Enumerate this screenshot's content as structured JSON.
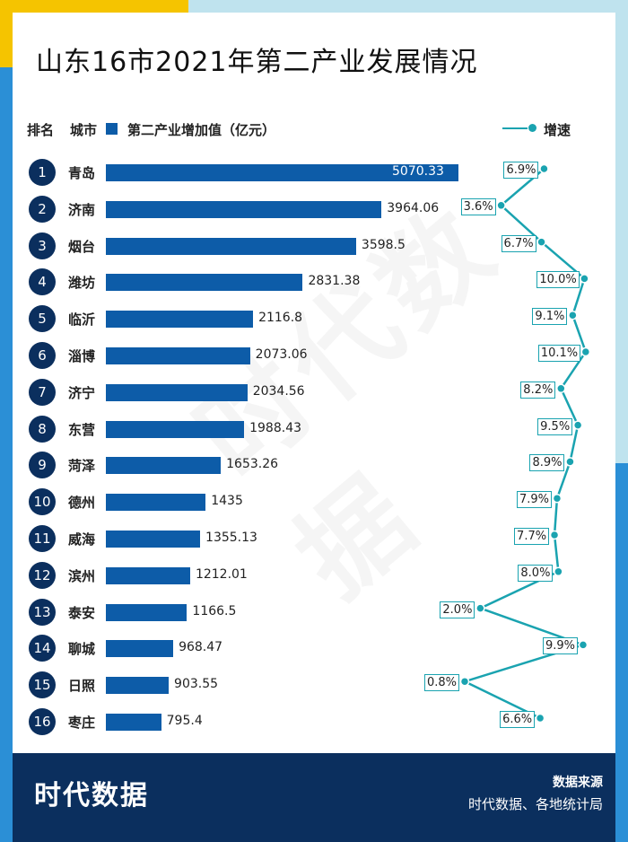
{
  "title": "山东16市2021年第二产业发展情况",
  "headers": {
    "rank": "排名",
    "city": "城市",
    "value": "第二产业增加值（亿元）",
    "growth": "增速"
  },
  "colors": {
    "bar": "#0d5ca8",
    "line": "#1aa3b0",
    "badge": "#0b2f5e"
  },
  "chart_data": {
    "type": "bar",
    "title": "山东16市2021年第二产业发展情况",
    "categories": [
      "青岛",
      "济南",
      "烟台",
      "潍坊",
      "临沂",
      "淄博",
      "济宁",
      "东营",
      "菏泽",
      "德州",
      "威海",
      "滨州",
      "泰安",
      "聊城",
      "日照",
      "枣庄"
    ],
    "ranks": [
      "1",
      "2",
      "3",
      "4",
      "5",
      "6",
      "7",
      "8",
      "9",
      "10",
      "11",
      "12",
      "13",
      "14",
      "15",
      "16"
    ],
    "series": [
      {
        "name": "第二产业增加值（亿元）",
        "values": [
          5070.33,
          3964.06,
          3598.5,
          2831.38,
          2116.8,
          2073.06,
          2034.56,
          1988.43,
          1653.26,
          1435,
          1355.13,
          1212.01,
          1166.5,
          968.47,
          903.55,
          795.4
        ],
        "labels": [
          "5070.33",
          "3964.06",
          "3598.5",
          "2831.38",
          "2116.8",
          "2073.06",
          "2034.56",
          "1988.43",
          "1653.26",
          "1435",
          "1355.13",
          "1212.01",
          "1166.5",
          "968.47",
          "903.55",
          "795.4"
        ]
      },
      {
        "name": "增速",
        "type": "line",
        "values": [
          6.9,
          3.6,
          6.7,
          10.0,
          9.1,
          10.1,
          8.2,
          9.5,
          8.9,
          7.9,
          7.7,
          8.0,
          2.0,
          9.9,
          0.8,
          6.6
        ],
        "labels": [
          "6.9%",
          "3.6%",
          "6.7%",
          "10.0%",
          "9.1%",
          "10.1%",
          "8.2%",
          "9.5%",
          "8.9%",
          "7.9%",
          "7.7%",
          "8.0%",
          "2.0%",
          "9.9%",
          "0.8%",
          "6.6%"
        ]
      }
    ]
  },
  "footer": {
    "logo": "时代数据",
    "source_heading": "数据来源",
    "source_value": "时代数据、各地统计局"
  },
  "watermark": "时代数据"
}
